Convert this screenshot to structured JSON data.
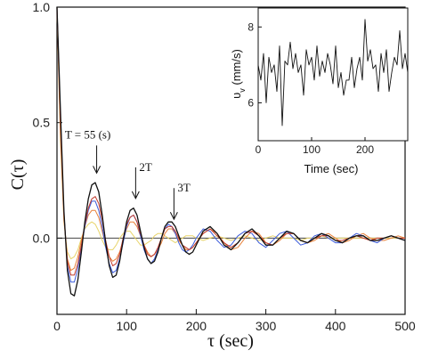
{
  "chart_data": [
    {
      "type": "line",
      "xlabel": "τ (sec)",
      "ylabel": "C(τ)",
      "xlim": [
        0,
        500
      ],
      "ylim": [
        -0.33,
        1.0
      ],
      "x_ticks": [
        "0",
        "100",
        "200",
        "300",
        "400",
        "500"
      ],
      "y_ticks": [
        "0.0",
        "0.5",
        "1.0"
      ],
      "zero_line": 0.0,
      "annotations": [
        {
          "text": "T = 55 (s)",
          "x": 57,
          "y": 0.27
        },
        {
          "text": "2T",
          "x": 113,
          "y": 0.16
        },
        {
          "text": "3T",
          "x": 168,
          "y": 0.07
        }
      ],
      "series": [
        {
          "color": "#111111",
          "x": [
            0,
            5,
            10,
            15,
            20,
            25,
            30,
            35,
            40,
            45,
            50,
            55,
            60,
            65,
            70,
            75,
            80,
            85,
            90,
            95,
            100,
            105,
            110,
            115,
            120,
            125,
            130,
            135,
            140,
            145,
            150,
            155,
            160,
            165,
            170,
            175,
            180,
            185,
            190,
            195,
            200,
            210,
            220,
            230,
            240,
            250,
            260,
            270,
            280,
            290,
            300,
            310,
            320,
            330,
            340,
            350,
            360,
            370,
            380,
            390,
            400,
            410,
            420,
            430,
            440,
            450,
            460,
            470,
            480,
            490,
            500
          ],
          "y": [
            1.0,
            0.55,
            0.12,
            -0.14,
            -0.24,
            -0.25,
            -0.18,
            -0.06,
            0.07,
            0.17,
            0.23,
            0.24,
            0.2,
            0.1,
            -0.02,
            -0.12,
            -0.17,
            -0.16,
            -0.1,
            -0.01,
            0.07,
            0.12,
            0.13,
            0.1,
            0.03,
            -0.04,
            -0.09,
            -0.11,
            -0.1,
            -0.06,
            0.0,
            0.05,
            0.07,
            0.07,
            0.05,
            0.01,
            -0.03,
            -0.06,
            -0.07,
            -0.06,
            -0.03,
            0.03,
            0.05,
            0.02,
            -0.03,
            -0.05,
            -0.02,
            0.02,
            0.04,
            0.01,
            -0.03,
            -0.03,
            0.0,
            0.03,
            0.02,
            -0.01,
            -0.02,
            0.0,
            0.02,
            0.01,
            -0.01,
            -0.02,
            0.0,
            0.01,
            0.01,
            -0.01,
            -0.01,
            0.0,
            0.01,
            0.0,
            -0.01
          ]
        },
        {
          "color": "#c0392b",
          "x": [
            0,
            5,
            10,
            15,
            20,
            25,
            30,
            35,
            40,
            45,
            50,
            55,
            60,
            65,
            70,
            75,
            80,
            85,
            90,
            95,
            100,
            105,
            110,
            115,
            120,
            125,
            130,
            135,
            140,
            145,
            150,
            155,
            160,
            165,
            170,
            175,
            180,
            185,
            190,
            195,
            200,
            210,
            220,
            230,
            240,
            250,
            260,
            270,
            280,
            290,
            300,
            310,
            320,
            330,
            340,
            350,
            360,
            370,
            380,
            390,
            400,
            410,
            420,
            430,
            440,
            450,
            460,
            470,
            480,
            490,
            500
          ],
          "y": [
            1.0,
            0.5,
            0.1,
            -0.1,
            -0.16,
            -0.16,
            -0.11,
            -0.03,
            0.06,
            0.13,
            0.17,
            0.18,
            0.15,
            0.08,
            -0.01,
            -0.08,
            -0.12,
            -0.11,
            -0.07,
            0.0,
            0.06,
            0.09,
            0.1,
            0.07,
            0.02,
            -0.03,
            -0.07,
            -0.08,
            -0.07,
            -0.04,
            0.0,
            0.04,
            0.05,
            0.05,
            0.03,
            0.0,
            -0.03,
            -0.04,
            -0.05,
            -0.04,
            -0.02,
            0.02,
            0.04,
            0.01,
            -0.02,
            -0.04,
            -0.02,
            0.02,
            0.03,
            0.01,
            -0.02,
            -0.03,
            0.0,
            0.02,
            0.02,
            -0.01,
            -0.02,
            0.0,
            0.01,
            0.01,
            -0.01,
            -0.01,
            0.0,
            0.01,
            0.0,
            -0.01,
            0.0,
            0.0,
            0.01,
            0.0,
            0.0
          ]
        },
        {
          "color": "#3b5bdb",
          "x": [
            0,
            5,
            10,
            15,
            20,
            25,
            30,
            35,
            40,
            45,
            50,
            55,
            60,
            65,
            70,
            75,
            80,
            85,
            90,
            95,
            100,
            105,
            110,
            115,
            120,
            125,
            130,
            135,
            140,
            145,
            150,
            155,
            160,
            165,
            170,
            175,
            180,
            185,
            190,
            195,
            200,
            210,
            220,
            230,
            240,
            250,
            260,
            270,
            280,
            290,
            300,
            310,
            320,
            330,
            340,
            350,
            360,
            370,
            380,
            390,
            400,
            410,
            420,
            430,
            440,
            450,
            460,
            470,
            480,
            490,
            500
          ],
          "y": [
            1.0,
            0.52,
            0.11,
            -0.12,
            -0.19,
            -0.19,
            -0.13,
            -0.04,
            0.05,
            0.12,
            0.16,
            0.16,
            0.12,
            0.05,
            -0.04,
            -0.11,
            -0.15,
            -0.14,
            -0.09,
            -0.02,
            0.05,
            0.09,
            0.1,
            0.07,
            0.01,
            -0.05,
            -0.09,
            -0.11,
            -0.09,
            -0.05,
            0.0,
            0.04,
            0.06,
            0.05,
            0.02,
            -0.02,
            -0.05,
            -0.06,
            -0.05,
            -0.03,
            0.0,
            0.04,
            0.03,
            -0.01,
            -0.04,
            -0.03,
            0.01,
            0.03,
            0.02,
            -0.02,
            -0.04,
            -0.01,
            0.02,
            0.03,
            0.0,
            -0.03,
            -0.02,
            0.01,
            0.02,
            0.0,
            -0.02,
            -0.02,
            0.0,
            0.02,
            0.01,
            -0.01,
            -0.02,
            0.0,
            0.01,
            0.0,
            -0.01
          ]
        },
        {
          "color": "#e8813a",
          "x": [
            0,
            5,
            10,
            15,
            20,
            25,
            30,
            35,
            40,
            45,
            50,
            55,
            60,
            65,
            70,
            75,
            80,
            85,
            90,
            95,
            100,
            105,
            110,
            115,
            120,
            125,
            130,
            135,
            140,
            145,
            150,
            155,
            160,
            165,
            170,
            175,
            180,
            185,
            190,
            195,
            200,
            210,
            220,
            230,
            240,
            250,
            260,
            270,
            280,
            290,
            300,
            310,
            320,
            330,
            340,
            350,
            360,
            370,
            380,
            390,
            400,
            410,
            420,
            430,
            440,
            450,
            460,
            470,
            480,
            490,
            500
          ],
          "y": [
            1.0,
            0.45,
            0.08,
            -0.09,
            -0.14,
            -0.13,
            -0.08,
            -0.01,
            0.05,
            0.1,
            0.12,
            0.12,
            0.09,
            0.03,
            -0.03,
            -0.08,
            -0.1,
            -0.09,
            -0.06,
            -0.01,
            0.04,
            0.07,
            0.07,
            0.05,
            0.01,
            -0.03,
            -0.06,
            -0.08,
            -0.07,
            -0.05,
            -0.02,
            0.02,
            0.04,
            0.04,
            0.02,
            -0.01,
            -0.03,
            -0.05,
            -0.05,
            -0.04,
            -0.02,
            0.02,
            0.04,
            0.02,
            -0.02,
            -0.05,
            -0.04,
            0.0,
            0.03,
            0.02,
            -0.02,
            -0.03,
            -0.01,
            0.02,
            0.02,
            -0.01,
            -0.02,
            -0.01,
            0.01,
            0.02,
            0.0,
            -0.02,
            -0.01,
            0.01,
            0.02,
            0.0,
            -0.01,
            -0.01,
            0.0,
            0.01,
            0.0
          ]
        },
        {
          "color": "#e8d46a",
          "x": [
            0,
            5,
            10,
            15,
            20,
            25,
            30,
            35,
            40,
            45,
            50,
            55,
            60,
            65,
            70,
            75,
            80,
            85,
            90,
            95,
            100,
            105,
            110,
            115,
            120,
            125,
            130,
            135,
            140,
            145,
            150,
            155,
            160,
            165,
            170,
            175,
            180,
            185,
            190,
            195,
            200,
            210,
            220,
            230,
            240,
            250,
            260,
            270,
            280,
            290,
            300,
            310,
            320,
            330,
            340,
            350,
            360,
            370,
            380,
            390,
            400,
            410,
            420,
            430,
            440,
            450,
            460,
            470,
            480,
            490,
            500
          ],
          "y": [
            1.0,
            0.42,
            0.07,
            -0.06,
            -0.09,
            -0.08,
            -0.05,
            0.0,
            0.04,
            0.06,
            0.07,
            0.06,
            0.03,
            -0.01,
            -0.04,
            -0.05,
            -0.05,
            -0.03,
            0.0,
            0.02,
            0.03,
            0.03,
            0.01,
            -0.01,
            -0.03,
            -0.03,
            -0.02,
            -0.01,
            0.01,
            0.02,
            0.02,
            0.01,
            0.0,
            -0.01,
            -0.02,
            -0.01,
            0.0,
            0.01,
            0.01,
            0.01,
            0.0,
            -0.01,
            0.0,
            0.01,
            0.0,
            -0.01,
            0.0,
            0.01,
            0.0,
            -0.01,
            0.0,
            0.01,
            0.0,
            0.0,
            0.0,
            -0.01,
            0.0,
            0.0,
            0.01,
            0.0,
            0.0,
            0.0,
            0.0,
            0.0,
            0.0,
            0.0,
            0.0,
            0.0,
            0.0,
            0.0,
            0.0
          ]
        }
      ]
    },
    {
      "type": "line",
      "inset": true,
      "xlabel": "Time (sec)",
      "ylabel": "υv (mm/s)",
      "ylabel_main": "υ",
      "ylabel_sub": "v",
      "ylabel_unit": " (mm/s)",
      "xlim": [
        0,
        280
      ],
      "ylim": [
        5,
        8.5
      ],
      "x_ticks": [
        "0",
        "100",
        "200"
      ],
      "y_ticks": [
        "6",
        "8"
      ],
      "series": [
        {
          "color": "#111111",
          "x": [
            0,
            5,
            10,
            15,
            20,
            25,
            30,
            35,
            40,
            45,
            50,
            55,
            60,
            65,
            70,
            75,
            80,
            85,
            90,
            95,
            100,
            105,
            110,
            115,
            120,
            125,
            130,
            135,
            140,
            145,
            150,
            155,
            160,
            165,
            170,
            175,
            180,
            185,
            190,
            195,
            200,
            205,
            210,
            215,
            220,
            225,
            230,
            235,
            240,
            245,
            250,
            255,
            260,
            265,
            270,
            275,
            280
          ],
          "y": [
            7.0,
            6.6,
            7.3,
            6.0,
            7.2,
            6.8,
            7.0,
            6.3,
            7.5,
            5.4,
            7.1,
            7.0,
            7.6,
            6.9,
            7.3,
            6.8,
            7.0,
            6.2,
            7.4,
            7.0,
            7.2,
            6.6,
            7.5,
            6.7,
            7.1,
            6.8,
            7.3,
            7.0,
            6.5,
            7.5,
            6.4,
            6.8,
            6.2,
            6.6,
            6.6,
            7.2,
            6.4,
            6.9,
            7.2,
            6.6,
            8.2,
            7.1,
            7.4,
            6.9,
            7.0,
            6.3,
            7.3,
            6.8,
            7.4,
            6.3,
            6.8,
            7.2,
            7.0,
            7.9,
            6.9,
            7.3,
            6.8
          ]
        }
      ]
    }
  ]
}
